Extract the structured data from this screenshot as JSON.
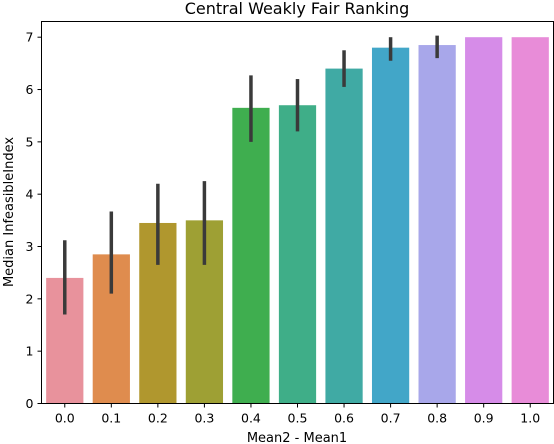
{
  "chart_data": {
    "type": "bar",
    "title": "Central Weakly Fair Ranking",
    "xlabel": "Mean2 - Mean1",
    "ylabel": "Median InfeasibleIndex",
    "ylim": [
      0,
      7.3
    ],
    "yticks": [
      0,
      1,
      2,
      3,
      4,
      5,
      6,
      7
    ],
    "grid": false,
    "categories": [
      "0.0",
      "0.1",
      "0.2",
      "0.3",
      "0.4",
      "0.5",
      "0.6",
      "0.7",
      "0.8",
      "0.9",
      "1.0"
    ],
    "values": [
      2.4,
      2.85,
      3.45,
      3.5,
      5.65,
      5.7,
      6.4,
      6.8,
      6.85,
      7.0,
      7.0
    ],
    "error_low": [
      1.7,
      2.1,
      2.65,
      2.65,
      5.0,
      5.2,
      6.05,
      6.55,
      6.6,
      7.0,
      7.0
    ],
    "error_high": [
      3.12,
      3.67,
      4.2,
      4.25,
      6.27,
      6.2,
      6.75,
      7.0,
      7.03,
      7.0,
      7.0
    ],
    "colors": [
      "#e8929c",
      "#df8c4e",
      "#b0972e",
      "#9ea034",
      "#3fae4f",
      "#3fae88",
      "#40aaa4",
      "#42a6c8",
      "#a8a7ea",
      "#d68ce8",
      "#e88cd8"
    ]
  }
}
